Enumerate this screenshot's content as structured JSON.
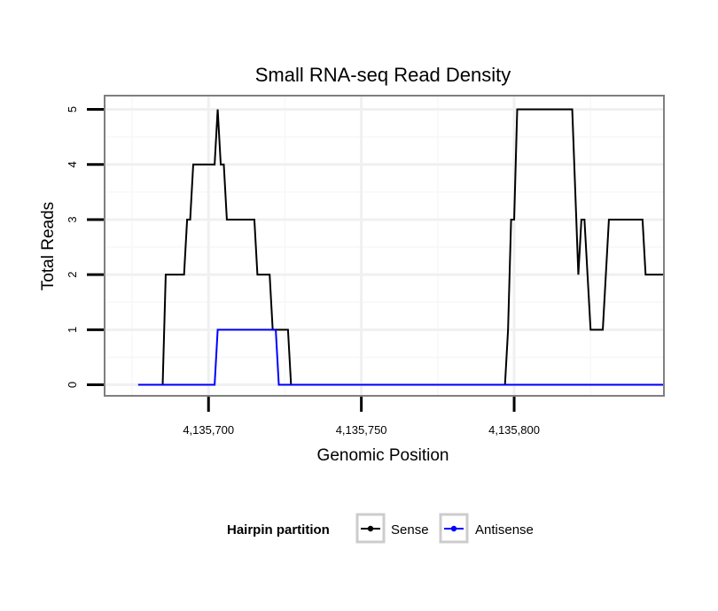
{
  "chart_data": {
    "type": "line",
    "title": "Small RNA-seq Read Density",
    "xlabel": "Genomic Position",
    "ylabel": "Total Reads",
    "xlim": [
      4135666,
      4135849
    ],
    "ylim": [
      -0.2,
      5.25
    ],
    "x_ticks": [
      4135700,
      4135750,
      4135800
    ],
    "x_tick_labels": [
      "4,135,700",
      "4,135,750",
      "4,135,800"
    ],
    "y_ticks": [
      0,
      1,
      2,
      3,
      4,
      5
    ],
    "y_tick_labels": [
      "0",
      "1",
      "2",
      "3",
      "4",
      "5"
    ],
    "grid": true,
    "legend": {
      "title": "Hairpin partition",
      "position": "bottom",
      "entries": [
        {
          "label": "Sense",
          "color": "#000000"
        },
        {
          "label": "Antisense",
          "color": "#0000ff"
        }
      ]
    },
    "series": [
      {
        "name": "Sense",
        "color": "#000000",
        "x": [
          4135677,
          4135685,
          4135686,
          4135692,
          4135693,
          4135694,
          4135695,
          4135702,
          4135703,
          4135704,
          4135705,
          4135706,
          4135707,
          4135715,
          4135716,
          4135720,
          4135721,
          4135725,
          4135726,
          4135727,
          4135728,
          4135797,
          4135798,
          4135799,
          4135800,
          4135801,
          4135803,
          4135819,
          4135821,
          4135822,
          4135823,
          4135825,
          4135826,
          4135829,
          4135831,
          4135842,
          4135843,
          4135849
        ],
        "y": [
          0,
          0,
          2,
          2,
          3,
          3,
          4,
          4,
          5,
          4,
          4,
          3,
          3,
          3,
          2,
          2,
          1,
          1,
          1,
          0,
          0,
          0,
          1,
          3,
          3,
          5,
          5,
          5,
          2,
          3,
          3,
          1,
          1,
          1,
          3,
          3,
          2,
          2
        ]
      },
      {
        "name": "Antisense",
        "color": "#0000ff",
        "x": [
          4135677,
          4135702,
          4135703,
          4135722,
          4135723,
          4135849
        ],
        "y": [
          0,
          0,
          1,
          1,
          0,
          0
        ]
      }
    ]
  }
}
